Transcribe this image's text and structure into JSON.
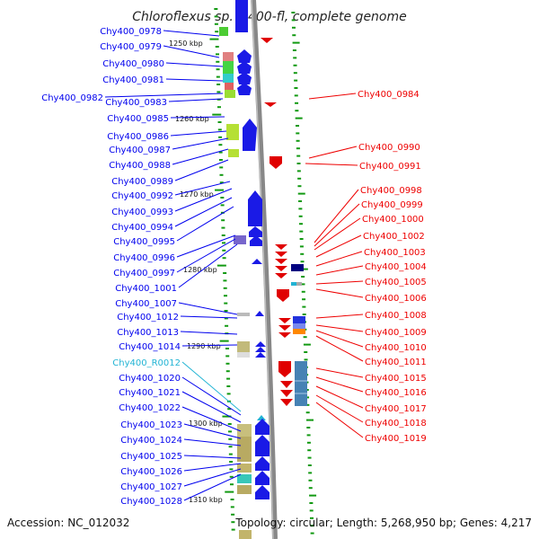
{
  "title": "Chloroflexus sp. Y-400-fl, complete genome",
  "accession": "Accession: NC_012032",
  "topology": "Topology: circular; Length: 5,268,950 bp; Genes: 4,217",
  "colors": {
    "forward_gene": "#0000ee",
    "reverse_gene": "#ee0000",
    "rna_gene": "#22b4d4",
    "tick": "#119911",
    "backbone": "#888888"
  },
  "scale_ticks": [
    {
      "label": "1250 kbp"
    },
    {
      "label": "1260 kbp"
    },
    {
      "label": "1270 kbp"
    },
    {
      "label": "1280 kbp"
    },
    {
      "label": "1290 kbp"
    },
    {
      "label": "1300 kbp"
    },
    {
      "label": "1310 kbp"
    }
  ],
  "left_labels": [
    {
      "text": "Chy400_0978",
      "type": "gene"
    },
    {
      "text": "Chy400_0979",
      "type": "gene"
    },
    {
      "text": "Chy400_0980",
      "type": "gene"
    },
    {
      "text": "Chy400_0981",
      "type": "gene"
    },
    {
      "text": "Chy400_0982",
      "type": "gene"
    },
    {
      "text": "Chy400_0983",
      "type": "gene"
    },
    {
      "text": "Chy400_0985",
      "type": "gene"
    },
    {
      "text": "Chy400_0986",
      "type": "gene"
    },
    {
      "text": "Chy400_0987",
      "type": "gene"
    },
    {
      "text": "Chy400_0988",
      "type": "gene"
    },
    {
      "text": "Chy400_0989",
      "type": "gene"
    },
    {
      "text": "Chy400_0992",
      "type": "gene"
    },
    {
      "text": "Chy400_0993",
      "type": "gene"
    },
    {
      "text": "Chy400_0994",
      "type": "gene"
    },
    {
      "text": "Chy400_0995",
      "type": "gene"
    },
    {
      "text": "Chy400_0996",
      "type": "gene"
    },
    {
      "text": "Chy400_0997",
      "type": "gene"
    },
    {
      "text": "Chy400_1001",
      "type": "gene"
    },
    {
      "text": "Chy400_1007",
      "type": "gene"
    },
    {
      "text": "Chy400_1012",
      "type": "gene"
    },
    {
      "text": "Chy400_1013",
      "type": "gene"
    },
    {
      "text": "Chy400_1014",
      "type": "gene"
    },
    {
      "text": "Chy400_R0012",
      "type": "rna"
    },
    {
      "text": "Chy400_1020",
      "type": "gene"
    },
    {
      "text": "Chy400_1021",
      "type": "gene"
    },
    {
      "text": "Chy400_1022",
      "type": "gene"
    },
    {
      "text": "Chy400_1023",
      "type": "gene"
    },
    {
      "text": "Chy400_1024",
      "type": "gene"
    },
    {
      "text": "Chy400_1025",
      "type": "gene"
    },
    {
      "text": "Chy400_1026",
      "type": "gene"
    },
    {
      "text": "Chy400_1027",
      "type": "gene"
    },
    {
      "text": "Chy400_1028",
      "type": "gene"
    }
  ],
  "right_labels": [
    {
      "text": "Chy400_0984"
    },
    {
      "text": "Chy400_0990"
    },
    {
      "text": "Chy400_0991"
    },
    {
      "text": "Chy400_0998"
    },
    {
      "text": "Chy400_0999"
    },
    {
      "text": "Chy400_1000"
    },
    {
      "text": "Chy400_1002"
    },
    {
      "text": "Chy400_1003"
    },
    {
      "text": "Chy400_1004"
    },
    {
      "text": "Chy400_1005"
    },
    {
      "text": "Chy400_1006"
    },
    {
      "text": "Chy400_1008"
    },
    {
      "text": "Chy400_1009"
    },
    {
      "text": "Chy400_1010"
    },
    {
      "text": "Chy400_1011"
    },
    {
      "text": "Chy400_1015"
    },
    {
      "text": "Chy400_1016"
    },
    {
      "text": "Chy400_1017"
    },
    {
      "text": "Chy400_1018"
    },
    {
      "text": "Chy400_1019"
    }
  ]
}
